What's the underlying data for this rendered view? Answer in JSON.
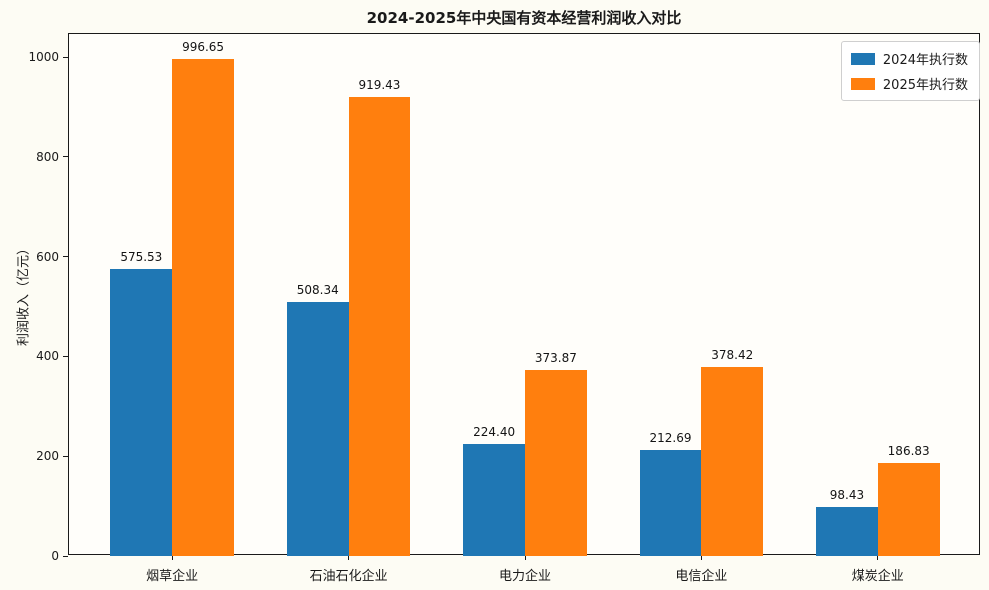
{
  "chart_data": {
    "type": "bar",
    "title": "2024-2025年中央国有资本经营利润收入对比",
    "ylabel": "利润收入（亿元）",
    "xlabel": "",
    "categories": [
      "烟草企业",
      "石油石化企业",
      "电力企业",
      "电信企业",
      "煤炭企业"
    ],
    "series": [
      {
        "name": "2024年执行数",
        "color": "#1f77b4",
        "values": [
          575.53,
          508.34,
          224.4,
          212.69,
          98.43
        ]
      },
      {
        "name": "2025年执行数",
        "color": "#ff7f0e",
        "values": [
          996.65,
          919.43,
          373.87,
          378.42,
          186.83
        ]
      }
    ],
    "yticks": [
      0,
      200,
      400,
      600,
      800,
      1000
    ],
    "ylim": [
      0,
      1046.48
    ],
    "xlim": [
      -0.585,
      4.585
    ],
    "bar_width_units": 0.35,
    "grid": false,
    "legend_position": "upper right",
    "value_label_decimals": 2
  }
}
